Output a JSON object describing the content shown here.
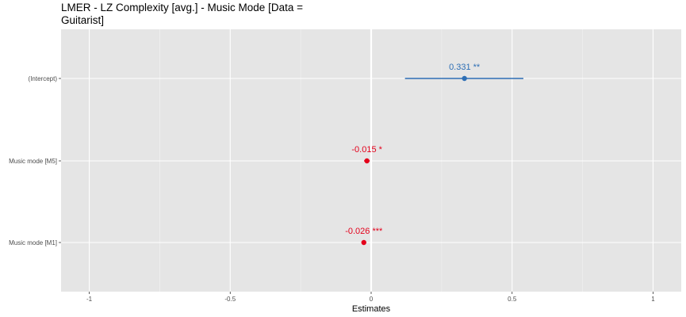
{
  "chart_data": {
    "type": "scatter",
    "title": "LMER - LZ Complexity [avg.] - Music Mode [Data = Guitarist]",
    "xlabel": "Estimates",
    "ylabel": "",
    "xlim": [
      -1.1,
      1.1
    ],
    "x_ticks": [
      -1,
      -0.5,
      0,
      0.5,
      1
    ],
    "x_tick_labels": [
      "-1",
      "-0.5",
      "0",
      "0.5",
      "1"
    ],
    "grid": true,
    "legend": "none",
    "terms": [
      {
        "term": "(Intercept)",
        "estimate": 0.331,
        "ci_low": 0.12,
        "ci_high": 0.54,
        "label": "0.331 **",
        "color": "#2e6fb5"
      },
      {
        "term": "Music mode [M5]",
        "estimate": -0.015,
        "ci_low": -0.025,
        "ci_high": -0.005,
        "label": "-0.015 *",
        "color": "#e4001b"
      },
      {
        "term": "Music mode [M1]",
        "estimate": -0.026,
        "ci_low": -0.032,
        "ci_high": -0.02,
        "label": "-0.026 ***",
        "color": "#e4001b"
      }
    ],
    "reference_line_x": 0
  }
}
